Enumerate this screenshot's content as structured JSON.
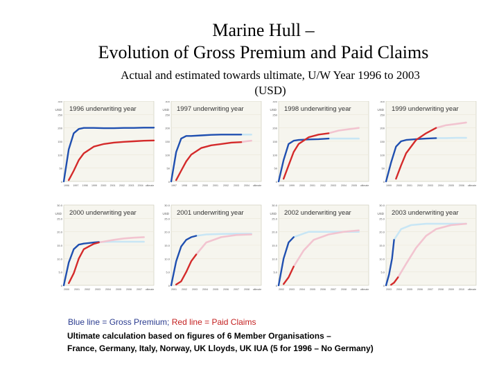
{
  "title_line1": "Marine Hull –",
  "title_line2": "Evolution of Gross Premium and Paid Claims",
  "subtitle_line1": "Actual and estimated towards ultimate, U/W Year 1996 to 2003",
  "subtitle_line2": "(USD)",
  "legend": {
    "premium_text": "Blue line = Gross Premium;",
    "claims_text": "Red line = Paid Claims"
  },
  "footnote_line1": "Ultimate calculation based on figures of 6 Member Organisations –",
  "footnote_line2": "France, Germany, Italy, Norway, UK Lloyds, UK IUA (5 for 1996 – No Germany)",
  "colors": {
    "premium": "#1f4fb0",
    "premium_estimate": "#c8e6f5",
    "claims": "#d42a2a",
    "claims_estimate": "#f2c4d0",
    "panel_bg": "#f6f5ee",
    "grid": "#ebe8d8"
  },
  "chart_data": [
    {
      "type": "line",
      "title": "1996 underwriting year",
      "unit_label": "USD",
      "y_ticks": [
        "300",
        "250",
        "200",
        "150",
        "100",
        "50",
        "0"
      ],
      "x_ticks": [
        "1996",
        "1997",
        "1998",
        "1999",
        "2000",
        "2001",
        "2002",
        "2003",
        "2004",
        "ultimate"
      ],
      "ylim": [
        0,
        300
      ],
      "series": [
        {
          "name": "Gross Premium",
          "x": [
            0,
            0.5,
            1,
            1.5,
            2,
            3,
            4,
            5,
            6,
            7,
            8,
            9
          ],
          "values": [
            0,
            120,
            180,
            196,
            200,
            200,
            199,
            199,
            200,
            200,
            201,
            201
          ]
        },
        {
          "name": "Paid Claims",
          "x": [
            0.5,
            1,
            1.5,
            2,
            3,
            4,
            5,
            6,
            7,
            8,
            9
          ],
          "values": [
            5,
            40,
            80,
            105,
            130,
            140,
            145,
            148,
            150,
            152,
            153
          ]
        }
      ]
    },
    {
      "type": "line",
      "title": "1997 underwriting year",
      "unit_label": "USD",
      "y_ticks": [
        "300",
        "250",
        "200",
        "150",
        "100",
        "50",
        "0"
      ],
      "x_ticks": [
        "1997",
        "1998",
        "1999",
        "2000",
        "2001",
        "2002",
        "2003",
        "2004",
        "ultimate"
      ],
      "ylim": [
        0,
        300
      ],
      "series": [
        {
          "name": "Gross Premium",
          "x": [
            0,
            0.5,
            1,
            1.5,
            2,
            3,
            4,
            5,
            6,
            7
          ],
          "values": [
            0,
            110,
            160,
            170,
            170,
            172,
            174,
            175,
            175,
            175
          ]
        },
        {
          "name": "Gross Premium (estimate)",
          "x": [
            7,
            7.5,
            8
          ],
          "values": [
            175,
            175,
            175
          ]
        },
        {
          "name": "Paid Claims",
          "x": [
            0.5,
            1,
            1.5,
            2,
            3,
            4,
            5,
            6,
            7
          ],
          "values": [
            5,
            40,
            75,
            100,
            125,
            135,
            140,
            145,
            147
          ]
        },
        {
          "name": "Paid Claims (estimate)",
          "x": [
            7,
            7.5,
            8
          ],
          "values": [
            147,
            150,
            152
          ]
        }
      ]
    },
    {
      "type": "line",
      "title": "1998 underwriting year",
      "unit_label": "USD",
      "y_ticks": [
        "300",
        "250",
        "200",
        "150",
        "100",
        "50",
        "0"
      ],
      "x_ticks": [
        "1998",
        "1999",
        "2000",
        "2001",
        "2002",
        "2003",
        "2004",
        "2005",
        "ultimate"
      ],
      "ylim": [
        0,
        300
      ],
      "series": [
        {
          "name": "Gross Premium",
          "x": [
            0,
            0.5,
            1,
            1.5,
            2,
            3,
            4,
            5
          ],
          "values": [
            0,
            80,
            140,
            152,
            155,
            157,
            158,
            160
          ]
        },
        {
          "name": "Gross Premium (estimate)",
          "x": [
            5,
            6,
            7,
            8
          ],
          "values": [
            160,
            160,
            160,
            160
          ]
        },
        {
          "name": "Paid Claims",
          "x": [
            0.5,
            1,
            1.5,
            2,
            3,
            4,
            5
          ],
          "values": [
            10,
            60,
            110,
            140,
            165,
            175,
            180
          ]
        },
        {
          "name": "Paid Claims (estimate)",
          "x": [
            5,
            6,
            7,
            8
          ],
          "values": [
            180,
            190,
            195,
            200
          ]
        }
      ]
    },
    {
      "type": "line",
      "title": "1999 underwriting year",
      "unit_label": "USD",
      "y_ticks": [
        "300",
        "250",
        "200",
        "150",
        "100",
        "50",
        "0"
      ],
      "x_ticks": [
        "1999",
        "2000",
        "2001",
        "2002",
        "2003",
        "2004",
        "2005",
        "2006",
        "ultimate"
      ],
      "ylim": [
        0,
        300
      ],
      "series": [
        {
          "name": "Gross Premium",
          "x": [
            0,
            0.5,
            1,
            1.5,
            2,
            3,
            4,
            5
          ],
          "values": [
            0,
            70,
            130,
            150,
            155,
            158,
            160,
            162
          ]
        },
        {
          "name": "Gross Premium (estimate)",
          "x": [
            5,
            6,
            7,
            8
          ],
          "values": [
            162,
            162,
            163,
            163
          ]
        },
        {
          "name": "Paid Claims",
          "x": [
            1,
            1.5,
            2,
            3,
            4,
            5
          ],
          "values": [
            10,
            60,
            105,
            155,
            180,
            200
          ]
        },
        {
          "name": "Paid Claims (estimate)",
          "x": [
            5,
            6,
            7,
            8
          ],
          "values": [
            200,
            210,
            215,
            220
          ]
        }
      ]
    },
    {
      "type": "line",
      "title": "2000 underwriting year",
      "unit_label": "USD",
      "y_ticks": [
        "30.0",
        "25.0",
        "20.0",
        "15.0",
        "10.0",
        "5.0",
        "0"
      ],
      "x_ticks": [
        "2000",
        "2001",
        "2002",
        "2003",
        "2004",
        "2005",
        "2006",
        "2007",
        "ultimate"
      ],
      "ylim": [
        0,
        30
      ],
      "series": [
        {
          "name": "Gross Premium",
          "x": [
            0,
            0.5,
            1,
            1.5,
            2,
            3,
            3.5
          ],
          "values": [
            0,
            8.5,
            13.5,
            15.2,
            15.6,
            16.0,
            16.2
          ]
        },
        {
          "name": "Gross Premium (estimate)",
          "x": [
            3.5,
            5,
            6,
            7,
            8
          ],
          "values": [
            16.2,
            16.3,
            16.3,
            16.3,
            16.3
          ]
        },
        {
          "name": "Paid Claims",
          "x": [
            0.5,
            1,
            1.5,
            2,
            3,
            3.5
          ],
          "values": [
            0.8,
            4.5,
            10.0,
            13.5,
            15.5,
            16.0
          ]
        },
        {
          "name": "Paid Claims (estimate)",
          "x": [
            3.5,
            5,
            6,
            7,
            8
          ],
          "values": [
            16.0,
            17.0,
            17.5,
            17.8,
            18.0
          ]
        }
      ]
    },
    {
      "type": "line",
      "title": "2001 underwriting year",
      "unit_label": "USD",
      "y_ticks": [
        "30.0",
        "25.0",
        "20.0",
        "15.0",
        "10.0",
        "5.0",
        "0"
      ],
      "x_ticks": [
        "2001",
        "2002",
        "2003",
        "2004",
        "2005",
        "2006",
        "2007",
        "2008",
        "ultimate"
      ],
      "ylim": [
        0,
        30
      ],
      "series": [
        {
          "name": "Gross Premium",
          "x": [
            0,
            0.5,
            1,
            1.5,
            2,
            2.5
          ],
          "values": [
            0,
            9,
            14.5,
            17,
            18,
            18.5
          ]
        },
        {
          "name": "Gross Premium (estimate)",
          "x": [
            2.5,
            3.5,
            5,
            6.5,
            8
          ],
          "values": [
            18.5,
            19,
            19.2,
            19.3,
            19.3
          ]
        },
        {
          "name": "Paid Claims",
          "x": [
            0.5,
            1,
            1.5,
            2,
            2.5
          ],
          "values": [
            0.3,
            1.5,
            5,
            9,
            11.5
          ]
        },
        {
          "name": "Paid Claims (estimate)",
          "x": [
            2.5,
            3.5,
            5,
            6.5,
            8
          ],
          "values": [
            11.5,
            16,
            18,
            18.8,
            19
          ]
        }
      ]
    },
    {
      "type": "line",
      "title": "2002 underwriting year",
      "unit_label": "USD",
      "y_ticks": [
        "30.0",
        "25.0",
        "20.0",
        "15.0",
        "10.0",
        "5.0",
        "0"
      ],
      "x_ticks": [
        "2002",
        "2003",
        "2004",
        "2005",
        "2006",
        "2007",
        "2008",
        "2009",
        "ultimate"
      ],
      "ylim": [
        0,
        30
      ],
      "series": [
        {
          "name": "Gross Premium",
          "x": [
            0,
            0.5,
            1,
            1.5
          ],
          "values": [
            0,
            10,
            16,
            18
          ]
        },
        {
          "name": "Gross Premium (estimate)",
          "x": [
            1.5,
            3,
            5,
            8
          ],
          "values": [
            18,
            20,
            20,
            20
          ]
        },
        {
          "name": "Paid Claims",
          "x": [
            0.5,
            1,
            1.5
          ],
          "values": [
            0.5,
            3,
            7
          ]
        },
        {
          "name": "Paid Claims (estimate)",
          "x": [
            1.5,
            2.5,
            3.5,
            5,
            6.5,
            8
          ],
          "values": [
            7,
            13,
            17,
            19,
            20,
            20.5
          ]
        }
      ]
    },
    {
      "type": "line",
      "title": "2003 underwriting year",
      "unit_label": "USD",
      "y_ticks": [
        "30.0",
        "25.0",
        "20.0",
        "15.0",
        "10.0",
        "5.0",
        "0"
      ],
      "x_ticks": [
        "2003",
        "2004",
        "2005",
        "2006",
        "2007",
        "2008",
        "2009",
        "2010",
        "ultimate"
      ],
      "ylim": [
        0,
        30
      ],
      "series": [
        {
          "name": "Gross Premium",
          "x": [
            0,
            0.3,
            0.6,
            0.8
          ],
          "values": [
            0,
            4,
            10,
            17
          ]
        },
        {
          "name": "Gross Premium (estimate)",
          "x": [
            0.8,
            1.5,
            2.5,
            4,
            8
          ],
          "values": [
            17,
            21,
            22.5,
            23,
            23
          ]
        },
        {
          "name": "Paid Claims",
          "x": [
            0.5,
            0.8,
            1.2
          ],
          "values": [
            0.2,
            1,
            3
          ]
        },
        {
          "name": "Paid Claims (estimate)",
          "x": [
            1.2,
            2,
            3,
            4,
            5,
            6.5,
            8
          ],
          "values": [
            3,
            8,
            14,
            18.5,
            21,
            22.5,
            23
          ]
        }
      ]
    }
  ]
}
